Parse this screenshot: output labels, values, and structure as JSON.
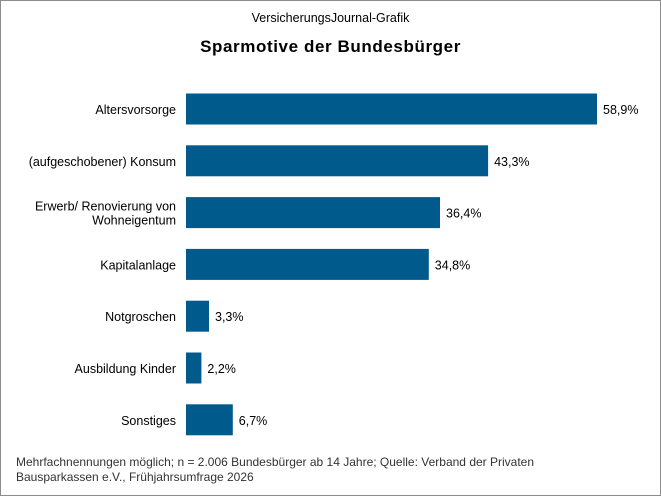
{
  "header": {
    "source": "VersicherungsJournal-Grafik"
  },
  "chart_data": {
    "type": "bar",
    "orientation": "horizontal",
    "title": "Sparmotive der Bundesbürger",
    "categories": [
      [
        "Altersvorsorge"
      ],
      [
        "(aufgeschobener) Konsum"
      ],
      [
        "Erwerb/ Renovierung von",
        "Wohneigentum"
      ],
      [
        "Kapitalanlage"
      ],
      [
        "Notgroschen"
      ],
      [
        "Ausbildung Kinder"
      ],
      [
        "Sonstiges"
      ]
    ],
    "values": [
      58.9,
      43.3,
      36.4,
      34.8,
      3.3,
      2.2,
      6.7
    ],
    "value_labels": [
      "58,9%",
      "43,3%",
      "36,4%",
      "34,8%",
      "3,3%",
      "2,2%",
      "6,7%"
    ],
    "unit": "%",
    "xlim": [
      0,
      58.9
    ],
    "bar_color": "#005a8c",
    "grid": false,
    "legend": "none"
  },
  "footnote": {
    "line1": "Mehrfachnennungen  möglich; n = 2.006 Bundesbürger  ab 14 Jahre; Quelle: Verband der Privaten",
    "line2": "Bausparkassen e.V., Frühjahrsumfrage  2026"
  }
}
